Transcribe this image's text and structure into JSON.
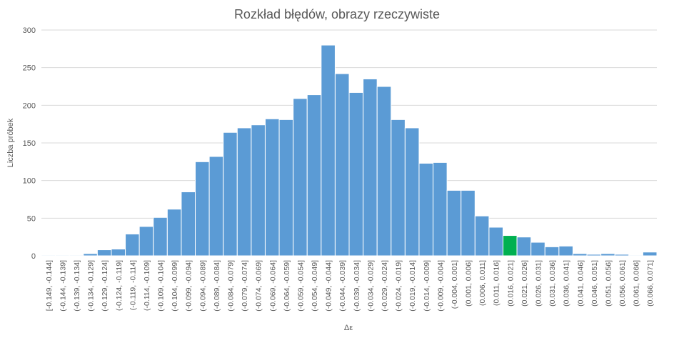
{
  "chart_data": {
    "type": "bar",
    "title": "Rozkład błędów, obrazy rzeczywiste",
    "xlabel": "Δε",
    "ylabel": "Liczba próbek",
    "ylim": [
      0,
      300
    ],
    "yticks": [
      0,
      50,
      100,
      150,
      200,
      250,
      300
    ],
    "grid": true,
    "legend": "none",
    "colors": {
      "bar": "#5b9bd5",
      "highlight": "#00b050",
      "grid": "#d9d9d9",
      "text": "#595959"
    },
    "highlight_index": 33,
    "categories": [
      "[-0.149, -0.144]",
      "(-0.144, -0.139]",
      "(-0.139, -0.134]",
      "(-0.134, -0.129]",
      "(-0.129, -0.124]",
      "(-0.124, -0.119]",
      "(-0.119, -0.114]",
      "(-0.114, -0.109]",
      "(-0.109, -0.104]",
      "(-0.104, -0.099]",
      "(-0.099, -0.094]",
      "(-0.094, -0.089]",
      "(-0.089, -0.084]",
      "(-0.084, -0.079]",
      "(-0.079, -0.074]",
      "(-0.074, -0.069]",
      "(-0.069, -0.064]",
      "(-0.064, -0.059]",
      "(-0.059, -0.054]",
      "(-0.054, -0.049]",
      "(-0.049, -0.044]",
      "(-0.044, -0.039]",
      "(-0.039, -0.034]",
      "(-0.034, -0.029]",
      "(-0.029, -0.024]",
      "(-0.024, -0.019]",
      "(-0.019, -0.014]",
      "(-0.014, -0.009]",
      "(-0.009, -0.004]",
      "(-0.004, 0.001]",
      "(0.001, 0.006]",
      "(0.006, 0.011]",
      "(0.011, 0.016]",
      "(0.016, 0.021]",
      "(0.021, 0.026]",
      "(0.026, 0.031]",
      "(0.031, 0.036]",
      "(0.036, 0.041]",
      "(0.041, 0.046]",
      "(0.046, 0.051]",
      "(0.051, 0.056]",
      "(0.056, 0.061]",
      "(0.061, 0.066]",
      "(0.066, 0.071]"
    ],
    "values": [
      1,
      1,
      1,
      3,
      8,
      9,
      29,
      39,
      51,
      62,
      85,
      125,
      132,
      164,
      170,
      174,
      182,
      181,
      209,
      214,
      280,
      242,
      217,
      235,
      225,
      181,
      170,
      123,
      124,
      87,
      87,
      53,
      38,
      27,
      25,
      18,
      12,
      13,
      3,
      2,
      3,
      2,
      1,
      5
    ]
  }
}
